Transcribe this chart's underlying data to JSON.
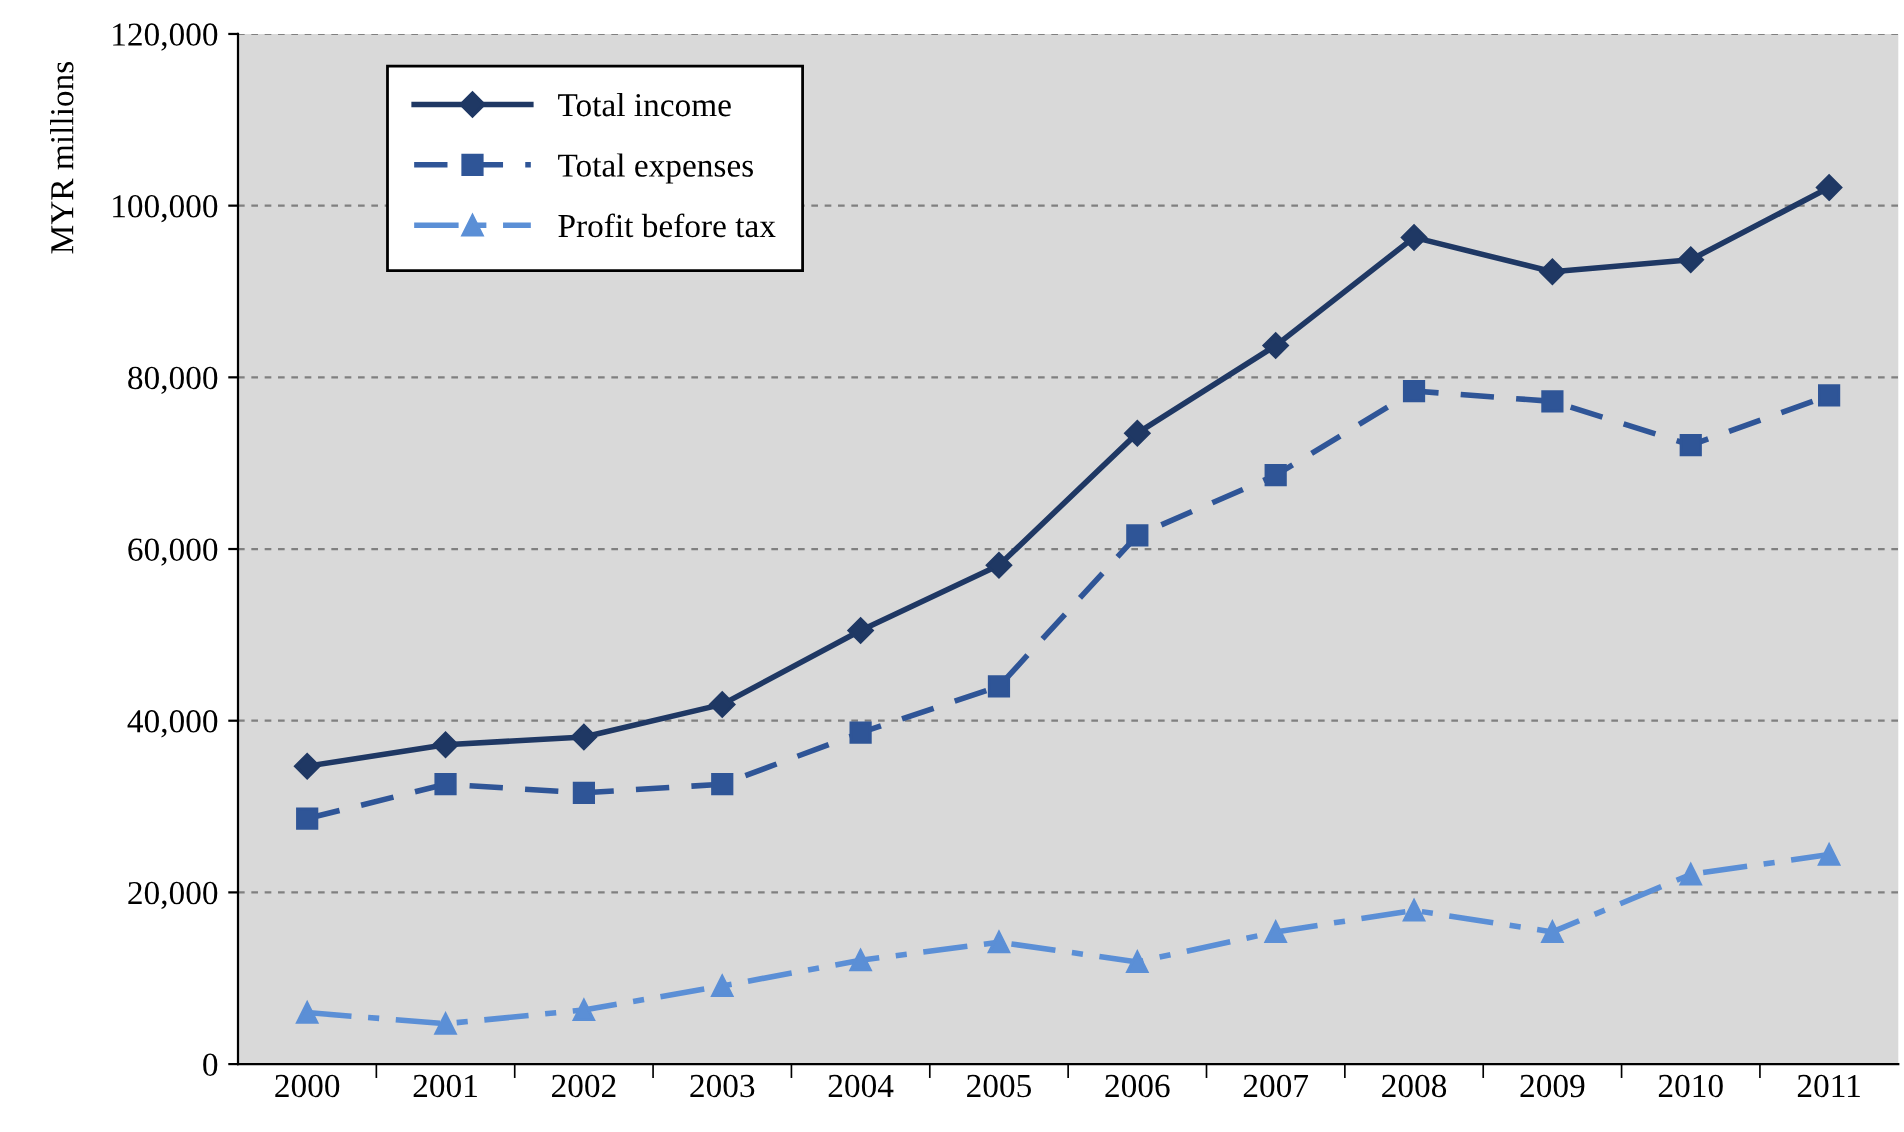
{
  "chart_data": {
    "type": "line",
    "ylabel": "MYR millions",
    "categories": [
      "2000",
      "2001",
      "2002",
      "2003",
      "2004",
      "2005",
      "2006",
      "2007",
      "2008",
      "2009",
      "2010",
      "2011"
    ],
    "series": [
      {
        "name": "Total income",
        "color": "#1f3864",
        "marker": "diamond",
        "line_style": "solid",
        "values": [
          34700,
          37200,
          38100,
          41900,
          50500,
          58100,
          73500,
          83700,
          96300,
          92300,
          93700,
          102100
        ]
      },
      {
        "name": "Total expenses",
        "color": "#2f5597",
        "marker": "square",
        "line_style": "dashed",
        "values": [
          28600,
          32600,
          31600,
          32600,
          38600,
          44000,
          61600,
          68600,
          78400,
          77200,
          72100,
          77900
        ]
      },
      {
        "name": "Profit before tax",
        "color": "#5b8fd6",
        "marker": "triangle",
        "line_style": "dashdot",
        "values": [
          6000,
          4700,
          6300,
          9100,
          12100,
          14200,
          11900,
          15400,
          17900,
          15400,
          22100,
          24400
        ]
      }
    ],
    "ylim": [
      0,
      120000
    ],
    "yticks": [
      0,
      {
        "value": 20000,
        "label": "20,000"
      },
      {
        "value": 40000,
        "label": "40,000"
      },
      {
        "value": 60000,
        "label": "60,000"
      },
      {
        "value": 80000,
        "label": "80,000"
      },
      {
        "value": 100000,
        "label": "100,000"
      },
      {
        "value": 120000,
        "label": "120,000"
      }
    ],
    "grid": "y",
    "legend": "top left"
  }
}
